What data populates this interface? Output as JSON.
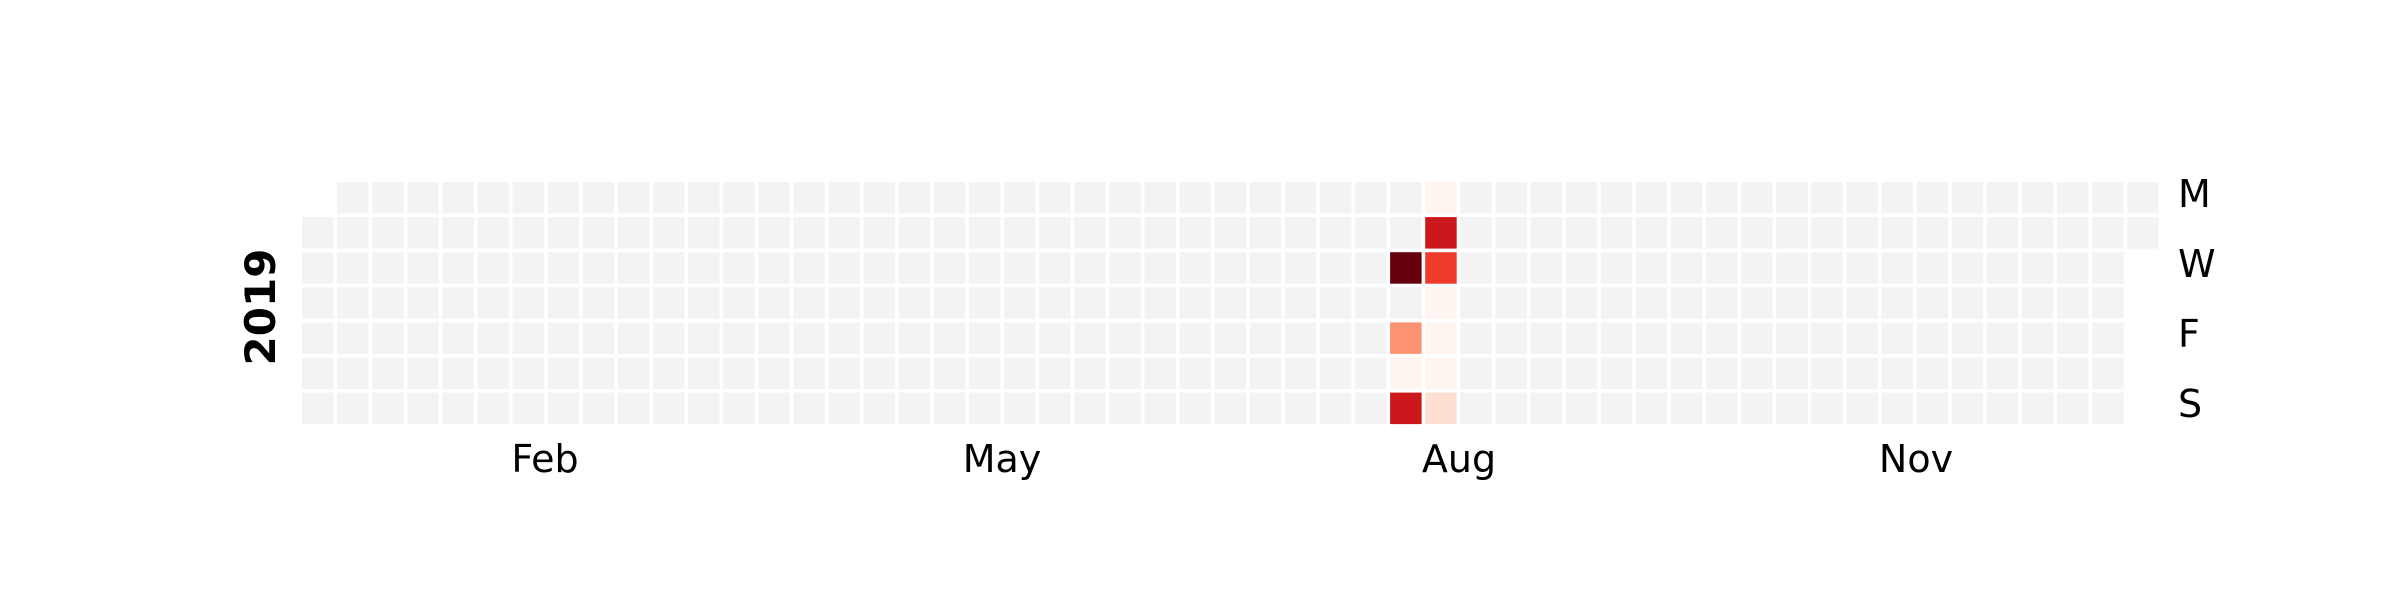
{
  "chart_data": {
    "type": "heatmap",
    "year": "2019",
    "month_labels": [
      "Feb",
      "May",
      "Aug",
      "Nov"
    ],
    "day_labels": [
      "M",
      "W",
      "F",
      "S"
    ],
    "colors": {
      "empty": "#f3f3f3",
      "scale": [
        "#fff5f0",
        "#fee0d2",
        "#fcbba1",
        "#fc9272",
        "#fb6a4a",
        "#ef3b2c",
        "#cb181d",
        "#a50f15",
        "#67000d"
      ]
    },
    "values": [
      {
        "date": "2019-08-07",
        "value": 10
      },
      {
        "date": "2019-08-09",
        "value": 4
      },
      {
        "date": "2019-08-10",
        "value": 0.2
      },
      {
        "date": "2019-08-11",
        "value": 7
      },
      {
        "date": "2019-08-12",
        "value": 0.2
      },
      {
        "date": "2019-08-13",
        "value": 7
      },
      {
        "date": "2019-08-14",
        "value": 6.5
      },
      {
        "date": "2019-08-15",
        "value": 0.3
      },
      {
        "date": "2019-08-16",
        "value": 0.3
      },
      {
        "date": "2019-08-17",
        "value": 0.3
      },
      {
        "date": "2019-08-18",
        "value": 1.6
      }
    ],
    "vmax": 10
  }
}
